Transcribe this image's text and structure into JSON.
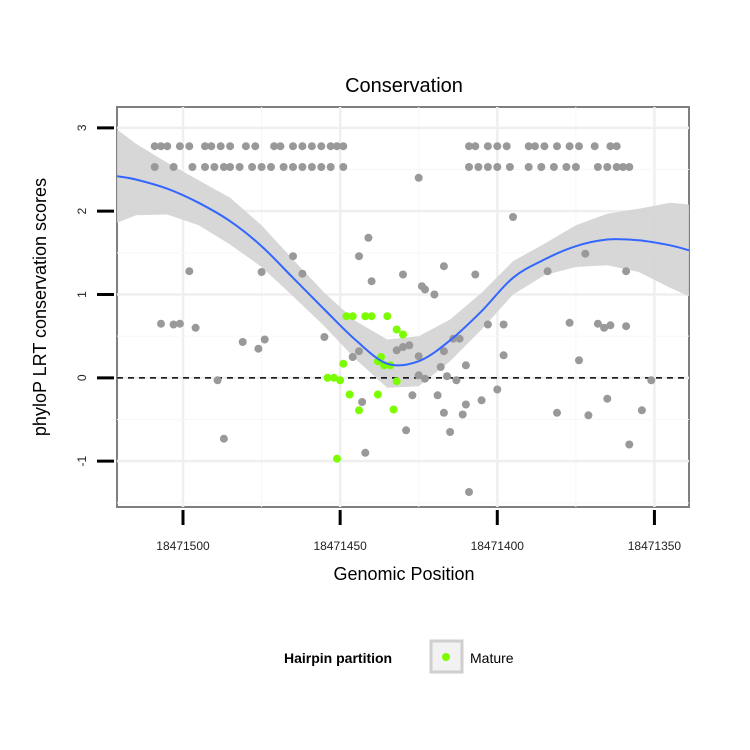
{
  "chart_data": {
    "type": "scatter",
    "title": "Conservation",
    "xlabel": "Genomic Position",
    "ylabel": "phyloP LRT conservation scores",
    "x_reversed": true,
    "xlim": [
      18471521,
      18471339
    ],
    "ylim": [
      -1.55,
      3.25
    ],
    "x_ticks": [
      18471500,
      18471450,
      18471400,
      18471350
    ],
    "x_tick_labels": [
      "18471500",
      "18471450",
      "18471400",
      "18471350"
    ],
    "y_ticks": [
      -1,
      0,
      1,
      2,
      3
    ],
    "y_tick_labels": [
      "-1",
      "0",
      "1",
      "2",
      "3"
    ],
    "grid": true,
    "reference_line": {
      "y": 0,
      "style": "dashed"
    },
    "legend": {
      "title": "Hairpin partition",
      "entries": [
        {
          "label": "Mature",
          "color": "#7cfc00"
        }
      ],
      "placement": "bottom"
    },
    "colors": {
      "other": "#999999",
      "mature": "#7cfc00",
      "smooth_line": "#3366ff",
      "ribbon": "#d3d3d3"
    },
    "series": [
      {
        "group": "other",
        "points": [
          [
            18471509,
            2.78
          ],
          [
            18471507,
            2.78
          ],
          [
            18471505,
            2.78
          ],
          [
            18471501,
            2.78
          ],
          [
            18471498,
            2.78
          ],
          [
            18471493,
            2.78
          ],
          [
            18471491,
            2.78
          ],
          [
            18471488,
            2.78
          ],
          [
            18471485,
            2.78
          ],
          [
            18471480,
            2.78
          ],
          [
            18471477,
            2.78
          ],
          [
            18471471,
            2.78
          ],
          [
            18471469,
            2.78
          ],
          [
            18471465,
            2.78
          ],
          [
            18471462,
            2.78
          ],
          [
            18471459,
            2.78
          ],
          [
            18471456,
            2.78
          ],
          [
            18471453,
            2.78
          ],
          [
            18471451,
            2.78
          ],
          [
            18471449,
            2.78
          ],
          [
            18471409,
            2.78
          ],
          [
            18471407,
            2.78
          ],
          [
            18471403,
            2.78
          ],
          [
            18471400,
            2.78
          ],
          [
            18471397,
            2.78
          ],
          [
            18471390,
            2.78
          ],
          [
            18471388,
            2.78
          ],
          [
            18471385,
            2.78
          ],
          [
            18471381,
            2.78
          ],
          [
            18471377,
            2.78
          ],
          [
            18471374,
            2.78
          ],
          [
            18471369,
            2.78
          ],
          [
            18471364,
            2.78
          ],
          [
            18471362,
            2.78
          ],
          [
            18471509,
            2.53
          ],
          [
            18471503,
            2.53
          ],
          [
            18471497,
            2.53
          ],
          [
            18471493,
            2.53
          ],
          [
            18471490,
            2.53
          ],
          [
            18471487,
            2.53
          ],
          [
            18471485,
            2.53
          ],
          [
            18471482,
            2.53
          ],
          [
            18471478,
            2.53
          ],
          [
            18471475,
            2.53
          ],
          [
            18471472,
            2.53
          ],
          [
            18471468,
            2.53
          ],
          [
            18471465,
            2.53
          ],
          [
            18471462,
            2.53
          ],
          [
            18471459,
            2.53
          ],
          [
            18471456,
            2.53
          ],
          [
            18471453,
            2.53
          ],
          [
            18471449,
            2.53
          ],
          [
            18471409,
            2.53
          ],
          [
            18471406,
            2.53
          ],
          [
            18471403,
            2.53
          ],
          [
            18471400,
            2.53
          ],
          [
            18471396,
            2.53
          ],
          [
            18471390,
            2.53
          ],
          [
            18471386,
            2.53
          ],
          [
            18471382,
            2.53
          ],
          [
            18471378,
            2.53
          ],
          [
            18471375,
            2.53
          ],
          [
            18471368,
            2.53
          ],
          [
            18471365,
            2.53
          ],
          [
            18471362,
            2.53
          ],
          [
            18471360,
            2.53
          ],
          [
            18471358,
            2.53
          ],
          [
            18471425,
            2.4
          ],
          [
            18471395,
            1.93
          ],
          [
            18471441,
            1.68
          ],
          [
            18471444,
            1.46
          ],
          [
            18471465,
            1.46
          ],
          [
            18471498,
            1.28
          ],
          [
            18471475,
            1.27
          ],
          [
            18471462,
            1.25
          ],
          [
            18471430,
            1.24
          ],
          [
            18471417,
            1.34
          ],
          [
            18471407,
            1.24
          ],
          [
            18471384,
            1.28
          ],
          [
            18471359,
            1.28
          ],
          [
            18471372,
            1.49
          ],
          [
            18471440,
            1.16
          ],
          [
            18471424,
            1.1
          ],
          [
            18471423,
            1.06
          ],
          [
            18471420,
            1.0
          ],
          [
            18471507,
            0.65
          ],
          [
            18471503,
            0.64
          ],
          [
            18471501,
            0.65
          ],
          [
            18471496,
            0.6
          ],
          [
            18471377,
            0.66
          ],
          [
            18471368,
            0.65
          ],
          [
            18471366,
            0.6
          ],
          [
            18471364,
            0.63
          ],
          [
            18471403,
            0.64
          ],
          [
            18471398,
            0.64
          ],
          [
            18471359,
            0.62
          ],
          [
            18471481,
            0.43
          ],
          [
            18471476,
            0.35
          ],
          [
            18471474,
            0.46
          ],
          [
            18471455,
            0.49
          ],
          [
            18471446,
            0.25
          ],
          [
            18471444,
            0.32
          ],
          [
            18471432,
            0.33
          ],
          [
            18471430,
            0.37
          ],
          [
            18471428,
            0.39
          ],
          [
            18471425,
            0.26
          ],
          [
            18471417,
            0.32
          ],
          [
            18471414,
            0.47
          ],
          [
            18471412,
            0.47
          ],
          [
            18471418,
            0.13
          ],
          [
            18471416,
            0.02
          ],
          [
            18471410,
            0.15
          ],
          [
            18471398,
            0.27
          ],
          [
            18471374,
            0.21
          ],
          [
            18471489,
            -0.03
          ],
          [
            18471487,
            -0.73
          ],
          [
            18471443,
            -0.29
          ],
          [
            18471442,
            -0.9
          ],
          [
            18471429,
            -0.63
          ],
          [
            18471427,
            -0.21
          ],
          [
            18471425,
            0.03
          ],
          [
            18471423,
            -0.01
          ],
          [
            18471419,
            -0.21
          ],
          [
            18471417,
            -0.42
          ],
          [
            18471415,
            -0.65
          ],
          [
            18471413,
            -0.03
          ],
          [
            18471411,
            -0.44
          ],
          [
            18471410,
            -0.32
          ],
          [
            18471409,
            -1.37
          ],
          [
            18471405,
            -0.27
          ],
          [
            18471400,
            -0.14
          ],
          [
            18471381,
            -0.42
          ],
          [
            18471371,
            -0.45
          ],
          [
            18471365,
            -0.25
          ],
          [
            18471358,
            -0.8
          ],
          [
            18471354,
            -0.39
          ],
          [
            18471351,
            -0.03
          ]
        ]
      },
      {
        "group": "mature",
        "points": [
          [
            18471448,
            0.74
          ],
          [
            18471446,
            0.74
          ],
          [
            18471442,
            0.74
          ],
          [
            18471440,
            0.74
          ],
          [
            18471435,
            0.74
          ],
          [
            18471432,
            0.58
          ],
          [
            18471430,
            0.52
          ],
          [
            18471437,
            0.25
          ],
          [
            18471438,
            0.2
          ],
          [
            18471436,
            0.15
          ],
          [
            18471434,
            0.15
          ],
          [
            18471449,
            0.17
          ],
          [
            18471450,
            -0.03
          ],
          [
            18471452,
            0.0
          ],
          [
            18471454,
            0.0
          ],
          [
            18471447,
            -0.2
          ],
          [
            18471444,
            -0.39
          ],
          [
            18471438,
            -0.2
          ],
          [
            18471433,
            -0.38
          ],
          [
            18471432,
            -0.04
          ],
          [
            18471451,
            -0.97
          ]
        ]
      }
    ],
    "smooth": {
      "x": [
        18471521,
        18471515,
        18471505,
        18471495,
        18471485,
        18471475,
        18471465,
        18471455,
        18471445,
        18471435,
        18471425,
        18471415,
        18471405,
        18471395,
        18471385,
        18471375,
        18471365,
        18471355,
        18471345,
        18471339
      ],
      "y": [
        2.42,
        2.38,
        2.27,
        2.1,
        1.88,
        1.58,
        1.2,
        0.82,
        0.45,
        0.17,
        0.2,
        0.45,
        0.8,
        1.2,
        1.42,
        1.58,
        1.66,
        1.65,
        1.59,
        1.53
      ],
      "lower": [
        1.86,
        1.95,
        1.96,
        1.83,
        1.6,
        1.33,
        0.98,
        0.62,
        0.22,
        -0.12,
        -0.1,
        0.2,
        0.58,
        1.0,
        1.23,
        1.33,
        1.35,
        1.27,
        1.08,
        0.98
      ],
      "upper": [
        2.98,
        2.81,
        2.58,
        2.37,
        2.16,
        1.83,
        1.42,
        1.02,
        0.68,
        0.46,
        0.5,
        0.7,
        1.02,
        1.4,
        1.61,
        1.83,
        1.97,
        2.03,
        2.1,
        2.08
      ]
    }
  }
}
